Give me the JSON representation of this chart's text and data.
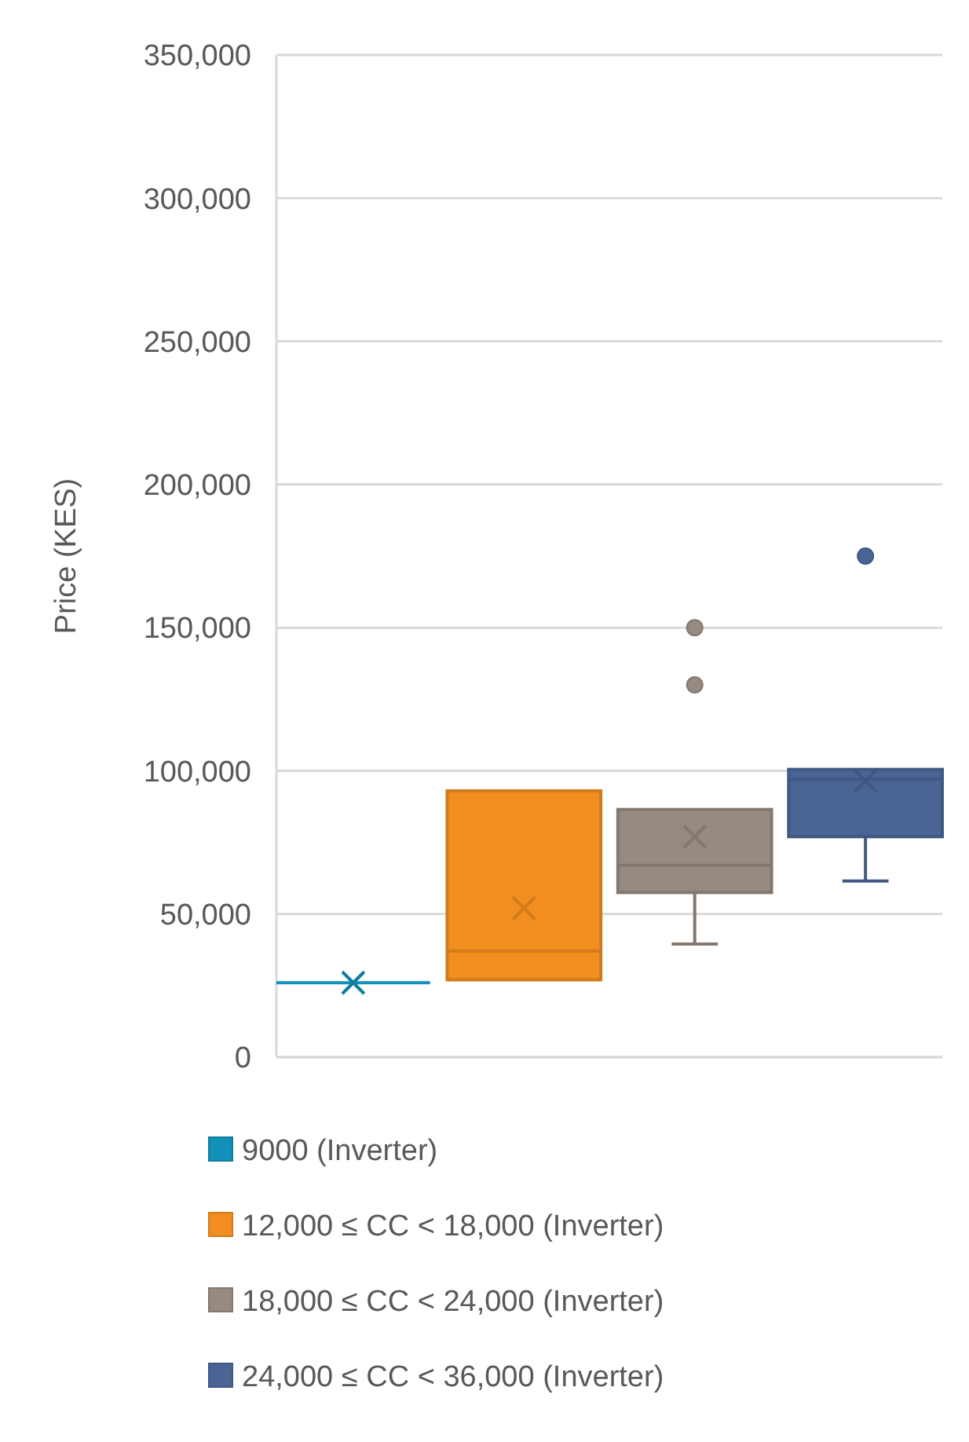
{
  "chart_data": {
    "type": "box",
    "ylabel": "Price (KES)",
    "categories": [
      null
    ],
    "series": [
      {
        "name": "9000 (Inverter)",
        "color": "#1190b8",
        "boxes": [
          {
            "low": 26000,
            "q1": 26000,
            "median": 26000,
            "q3": 26000,
            "high": 26000,
            "mean": 26000
          }
        ]
      },
      {
        "name": "12,000 ≤ CC < 18,000 (Inverter)",
        "color": "#f28e20",
        "boxes": [
          {
            "low": 27000,
            "q1": 27000,
            "median": 37000,
            "q3": 93000,
            "high": 93000,
            "mean": 52000
          }
        ]
      },
      {
        "name": "18,000 ≤ CC < 24,000 (Inverter)",
        "color": "#978a80",
        "boxes": [
          {
            "low": 39500,
            "q1": 57500,
            "median": 67000,
            "q3": 86500,
            "high": 86500,
            "mean": 77000,
            "outliers": [
              130000,
              150000
            ]
          }
        ]
      },
      {
        "name": "24,000 ≤ CC < 36,000 (Inverter)",
        "color": "#4a6595",
        "boxes": [
          {
            "low": 61500,
            "q1": 77000,
            "median": 97000,
            "q3": 100500,
            "high": 100500,
            "mean": 96500,
            "outliers": [
              175000
            ]
          }
        ]
      }
    ],
    "ylim": [
      0,
      350000
    ],
    "yticks": [
      {
        "value": 0,
        "label": "0"
      },
      {
        "value": 50000,
        "label": "50,000"
      },
      {
        "value": 100000,
        "label": "100,000"
      },
      {
        "value": 150000,
        "label": "150,000"
      },
      {
        "value": 200000,
        "label": "200,000"
      },
      {
        "value": 250000,
        "label": "250,000"
      },
      {
        "value": 300000,
        "label": "300,000"
      },
      {
        "value": 350000,
        "label": "350,000"
      }
    ],
    "grid": "y",
    "legend": "bottom",
    "marker": "cross"
  }
}
